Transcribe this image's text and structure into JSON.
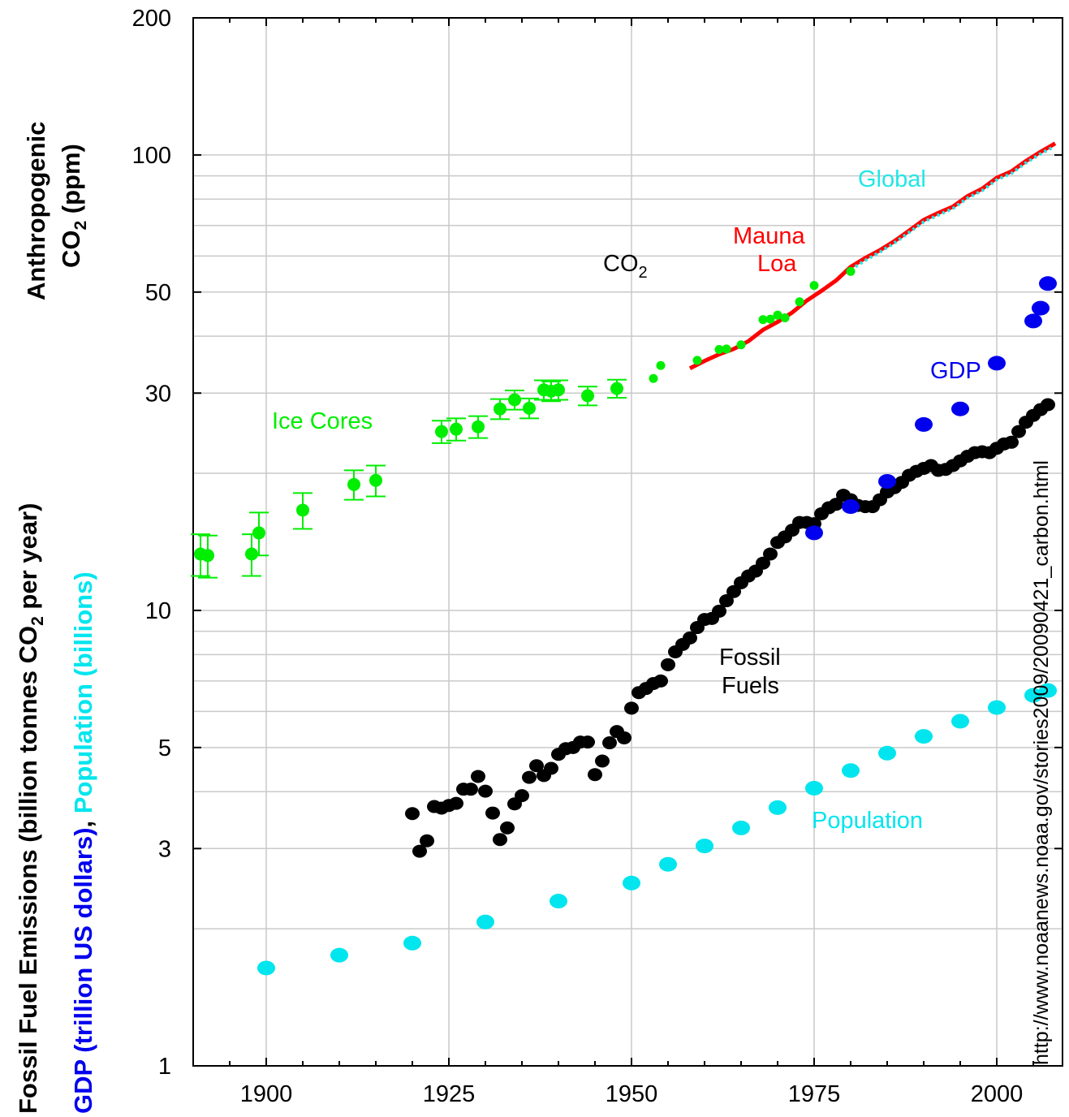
{
  "chart_data": {
    "type": "scatter",
    "y_scale": "log",
    "xlim": [
      1890,
      2009
    ],
    "ylim": [
      1,
      200
    ],
    "x_ticks": [
      "1900",
      "1925",
      "1950",
      "1975",
      "2000"
    ],
    "y_ticks": [
      "1",
      "3",
      "5",
      "10",
      "30",
      "50",
      "100",
      "200"
    ],
    "y_tick_values": [
      1,
      3,
      5,
      10,
      30,
      50,
      100,
      200
    ],
    "grid": true,
    "ylabel_top": {
      "line1": "Anthropogenic",
      "line2_prefix": "CO",
      "line2_sub": "2",
      "line2_suffix": " (ppm)"
    },
    "ylabel_bottom": {
      "line1_prefix": "Fossil Fuel Emissions (billion tonnes CO",
      "line1_sub": "2",
      "line1_suffix": " per year)",
      "line2_gdp": "GDP (trillion US dollars)",
      "line2_sep": ", ",
      "line2_pop": "Population (billions)"
    },
    "source_url": "http://www.noaanews.noaa.gov/stories2009/20090421_carbon.html",
    "annotations": {
      "co2_prefix": "CO",
      "co2_sub": "2",
      "ice_cores": "Ice Cores",
      "mauna": "Mauna",
      "loa": "Loa",
      "global": "Global",
      "gdp": "GDP",
      "fossil": "Fossil",
      "fuels": "Fuels",
      "population": "Population"
    },
    "colors": {
      "ice_cores": "#00ee00",
      "mauna_loa": "#ff0000",
      "global": "#22e6e6",
      "fossil_fuels": "#000000",
      "gdp": "#0000ee",
      "population": "#00e5ee"
    },
    "series": [
      {
        "key": "ice_cores",
        "error_bars": true,
        "points": [
          [
            1891,
            13.3,
            1.4
          ],
          [
            1892,
            13.2,
            1.4
          ],
          [
            1898,
            13.3,
            1.4
          ],
          [
            1899,
            14.8,
            1.6
          ],
          [
            1905,
            16.6,
            1.5
          ],
          [
            1912,
            18.9,
            1.4
          ],
          [
            1915,
            19.3,
            1.5
          ],
          [
            1924,
            24.7,
            1.4
          ],
          [
            1926,
            25.0,
            1.4
          ],
          [
            1929,
            25.3,
            1.4
          ],
          [
            1932,
            27.7,
            1.4
          ],
          [
            1934,
            29.0,
            1.4
          ],
          [
            1936,
            27.8,
            1.4
          ],
          [
            1938,
            30.5,
            1.5
          ],
          [
            1939,
            30.3,
            1.5
          ],
          [
            1940,
            30.5,
            1.5
          ],
          [
            1944,
            29.6,
            1.4
          ],
          [
            1948,
            30.7,
            1.4
          ]
        ]
      },
      {
        "key": "ice_small",
        "points": [
          [
            1953,
            32.3
          ],
          [
            1954,
            34.5
          ],
          [
            1959,
            35.4
          ],
          [
            1962,
            37.4
          ],
          [
            1963,
            37.5
          ],
          [
            1965,
            38.3
          ],
          [
            1968,
            43.5
          ],
          [
            1969,
            43.6
          ],
          [
            1970,
            44.5
          ],
          [
            1971,
            43.9
          ],
          [
            1973,
            47.6
          ],
          [
            1975,
            51.7
          ],
          [
            1980,
            55.5
          ]
        ]
      },
      {
        "key": "mauna_loa",
        "points": [
          [
            1958,
            34.0
          ],
          [
            1960,
            35.3
          ],
          [
            1962,
            36.5
          ],
          [
            1964,
            37.5
          ],
          [
            1966,
            39.0
          ],
          [
            1968,
            41.3
          ],
          [
            1970,
            43.0
          ],
          [
            1972,
            45.1
          ],
          [
            1974,
            47.9
          ],
          [
            1976,
            50.3
          ],
          [
            1978,
            53.0
          ],
          [
            1980,
            56.8
          ],
          [
            1982,
            59.4
          ],
          [
            1984,
            61.8
          ],
          [
            1986,
            64.7
          ],
          [
            1988,
            68.2
          ],
          [
            1990,
            72.0
          ],
          [
            1992,
            74.6
          ],
          [
            1994,
            77.0
          ],
          [
            1996,
            81.2
          ],
          [
            1998,
            84.3
          ],
          [
            2000,
            89.1
          ],
          [
            2002,
            92.0
          ],
          [
            2004,
            97.0
          ],
          [
            2006,
            101.6
          ],
          [
            2008,
            106.0
          ]
        ]
      },
      {
        "key": "global",
        "points": [
          [
            1980,
            56.0
          ],
          [
            1982,
            58.7
          ],
          [
            1984,
            61.2
          ],
          [
            1986,
            64.1
          ],
          [
            1988,
            67.6
          ],
          [
            1990,
            71.3
          ],
          [
            1992,
            73.8
          ],
          [
            1994,
            76.3
          ],
          [
            1996,
            80.4
          ],
          [
            1998,
            83.5
          ],
          [
            2000,
            88.2
          ],
          [
            2002,
            91.1
          ],
          [
            2004,
            96.1
          ],
          [
            2006,
            100.6
          ],
          [
            2007.5,
            103.6
          ]
        ]
      },
      {
        "key": "fossil_fuels",
        "points": [
          [
            1920,
            3.58
          ],
          [
            1921,
            2.96
          ],
          [
            1922,
            3.12
          ],
          [
            1923,
            3.71
          ],
          [
            1924,
            3.68
          ],
          [
            1925,
            3.73
          ],
          [
            1926,
            3.77
          ],
          [
            1927,
            4.05
          ],
          [
            1928,
            4.05
          ],
          [
            1929,
            4.32
          ],
          [
            1930,
            4.01
          ],
          [
            1931,
            3.59
          ],
          [
            1932,
            3.14
          ],
          [
            1933,
            3.33
          ],
          [
            1934,
            3.76
          ],
          [
            1935,
            3.92
          ],
          [
            1936,
            4.3
          ],
          [
            1937,
            4.56
          ],
          [
            1938,
            4.34
          ],
          [
            1939,
            4.5
          ],
          [
            1940,
            4.83
          ],
          [
            1941,
            4.97
          ],
          [
            1942,
            5.0
          ],
          [
            1943,
            5.14
          ],
          [
            1944,
            5.14
          ],
          [
            1945,
            4.36
          ],
          [
            1946,
            4.67
          ],
          [
            1947,
            5.12
          ],
          [
            1948,
            5.42
          ],
          [
            1949,
            5.25
          ],
          [
            1950,
            6.1
          ],
          [
            1951,
            6.6
          ],
          [
            1952,
            6.74
          ],
          [
            1953,
            6.91
          ],
          [
            1954,
            7.0
          ],
          [
            1955,
            7.6
          ],
          [
            1956,
            8.11
          ],
          [
            1957,
            8.42
          ],
          [
            1958,
            8.7
          ],
          [
            1959,
            9.17
          ],
          [
            1960,
            9.55
          ],
          [
            1961,
            9.6
          ],
          [
            1962,
            9.96
          ],
          [
            1963,
            10.5
          ],
          [
            1964,
            11.0
          ],
          [
            1965,
            11.5
          ],
          [
            1966,
            11.9
          ],
          [
            1967,
            12.2
          ],
          [
            1968,
            12.7
          ],
          [
            1969,
            13.3
          ],
          [
            1970,
            14.1
          ],
          [
            1971,
            14.5
          ],
          [
            1972,
            15.0
          ],
          [
            1973,
            15.6
          ],
          [
            1974,
            15.6
          ],
          [
            1975,
            15.5
          ],
          [
            1976,
            16.3
          ],
          [
            1977,
            16.8
          ],
          [
            1978,
            17.1
          ],
          [
            1979,
            17.9
          ],
          [
            1980,
            17.5
          ],
          [
            1981,
            17.0
          ],
          [
            1982,
            16.9
          ],
          [
            1983,
            16.9
          ],
          [
            1984,
            17.5
          ],
          [
            1985,
            18.2
          ],
          [
            1986,
            18.6
          ],
          [
            1987,
            19.1
          ],
          [
            1988,
            19.8
          ],
          [
            1989,
            20.2
          ],
          [
            1990,
            20.5
          ],
          [
            1991,
            20.8
          ],
          [
            1992,
            20.3
          ],
          [
            1993,
            20.4
          ],
          [
            1994,
            20.8
          ],
          [
            1995,
            21.3
          ],
          [
            1996,
            21.8
          ],
          [
            1997,
            22.2
          ],
          [
            1998,
            22.3
          ],
          [
            1999,
            22.2
          ],
          [
            2000,
            22.7
          ],
          [
            2001,
            23.2
          ],
          [
            2002,
            23.4
          ],
          [
            2003,
            24.7
          ],
          [
            2004,
            25.9
          ],
          [
            2005,
            26.8
          ],
          [
            2006,
            27.6
          ],
          [
            2007,
            28.3
          ]
        ]
      },
      {
        "key": "gdp",
        "points": [
          [
            1975,
            14.8
          ],
          [
            1980,
            16.9
          ],
          [
            1985,
            19.2
          ],
          [
            1990,
            25.6
          ],
          [
            1995,
            27.7
          ],
          [
            2000,
            34.9
          ],
          [
            2005,
            43.2
          ],
          [
            2006,
            46.1
          ],
          [
            2007,
            52.2
          ]
        ]
      },
      {
        "key": "population",
        "points": [
          [
            1900,
            1.64
          ],
          [
            1910,
            1.75
          ],
          [
            1920,
            1.86
          ],
          [
            1930,
            2.07
          ],
          [
            1940,
            2.3
          ],
          [
            1950,
            2.52
          ],
          [
            1955,
            2.77
          ],
          [
            1960,
            3.04
          ],
          [
            1965,
            3.33
          ],
          [
            1970,
            3.69
          ],
          [
            1975,
            4.07
          ],
          [
            1980,
            4.45
          ],
          [
            1985,
            4.86
          ],
          [
            1990,
            5.29
          ],
          [
            1995,
            5.71
          ],
          [
            2000,
            6.12
          ],
          [
            2005,
            6.51
          ],
          [
            2007,
            6.67
          ]
        ]
      }
    ]
  }
}
